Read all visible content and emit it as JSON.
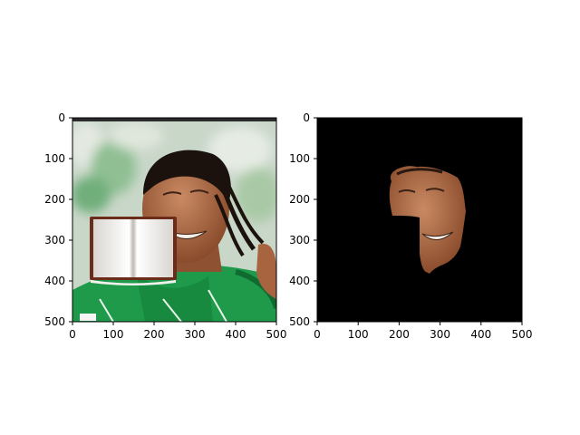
{
  "panels": [
    {
      "name": "original-photo",
      "content": "photo",
      "xlim": [
        0,
        500
      ],
      "ylim": [
        500,
        0
      ],
      "xticks": [
        0,
        100,
        200,
        300,
        400,
        500
      ],
      "yticks": [
        0,
        100,
        200,
        300,
        400,
        500
      ],
      "xtick_labels": [
        "0",
        "100",
        "200",
        "300",
        "400",
        "500"
      ],
      "ytick_labels": [
        "0",
        "100",
        "200",
        "300",
        "400",
        "500"
      ]
    },
    {
      "name": "segmented-face",
      "content": "mask",
      "background": "#000000",
      "xlim": [
        0,
        500
      ],
      "ylim": [
        500,
        0
      ],
      "xticks": [
        0,
        100,
        200,
        300,
        400,
        500
      ],
      "yticks": [
        0,
        100,
        200,
        300,
        400,
        500
      ],
      "xtick_labels": [
        "0",
        "100",
        "200",
        "300",
        "400",
        "500"
      ],
      "ytick_labels": [
        "0",
        "100",
        "200",
        "300",
        "400",
        "500"
      ]
    }
  ],
  "colors": {
    "jersey": "#1e9a4a",
    "jersey_dark": "#0f6b30",
    "skin": "#a8643f",
    "skin_light": "#c98a63",
    "hair": "#1c120d",
    "crowd_blur": "#8fbf93",
    "book_cover": "#6b2d1a",
    "book_page": "#f3f1ee",
    "mask_bg": "#000000",
    "axis": "#000000"
  }
}
